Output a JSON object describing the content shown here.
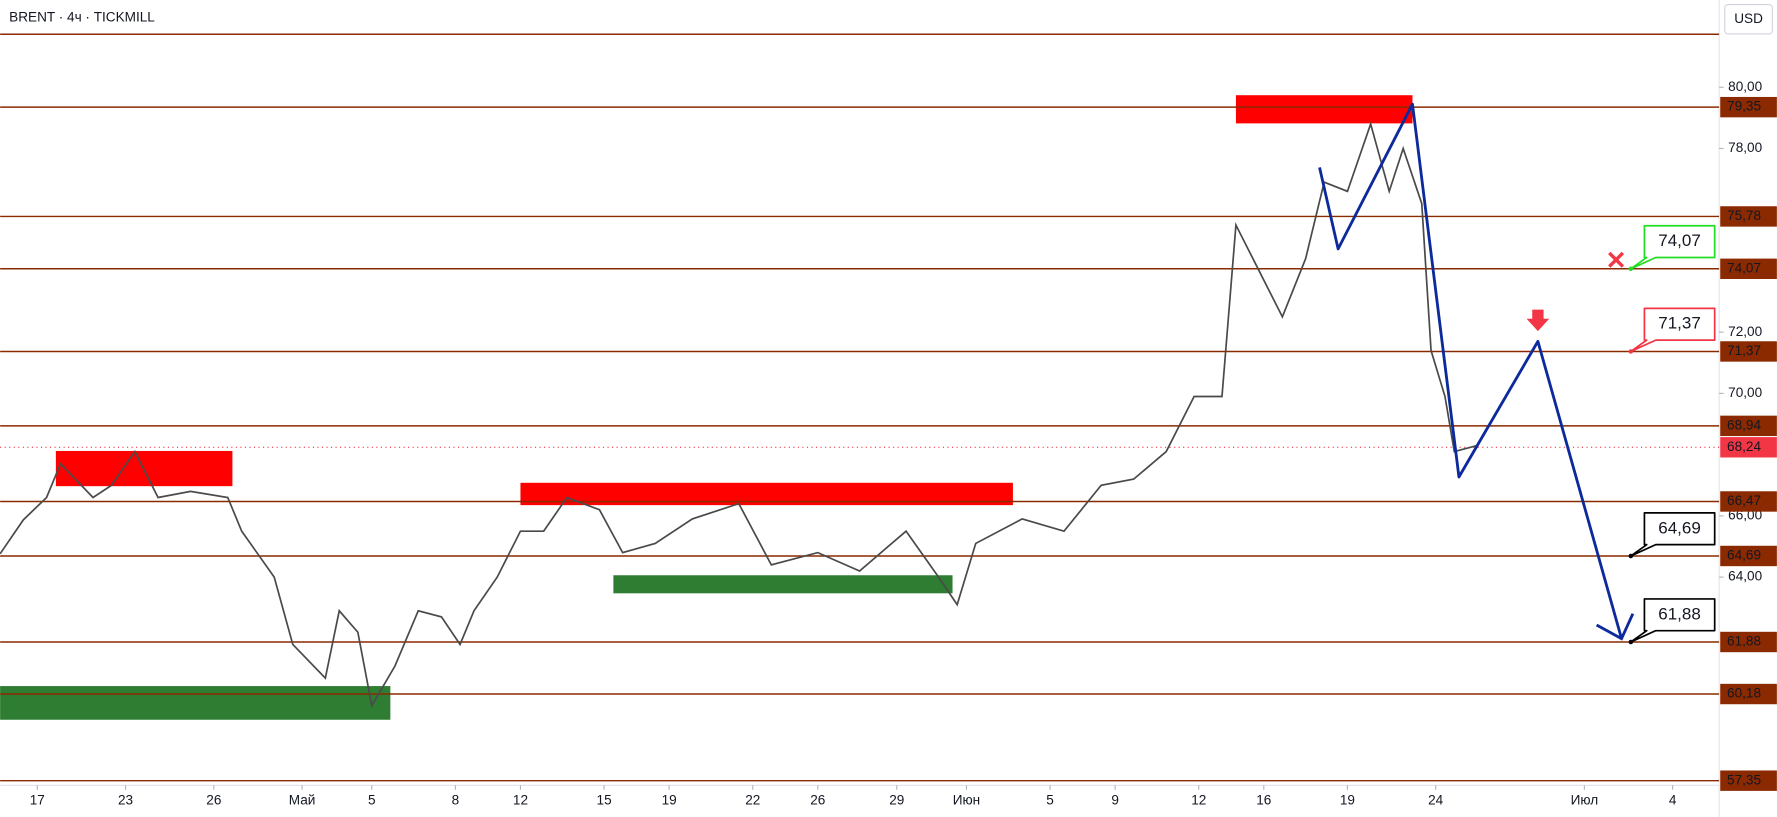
{
  "chart_data": {
    "type": "line",
    "title": "BRENT · 4ч · TICKMILL",
    "currency": "USD",
    "xlim": [
      0,
      370
    ],
    "ylim": [
      57.2,
      82.85
    ],
    "xticks": [
      {
        "value": 8,
        "label": "17"
      },
      {
        "value": 27,
        "label": "23"
      },
      {
        "value": 46,
        "label": "26"
      },
      {
        "value": 65,
        "label": "Май"
      },
      {
        "value": 80,
        "label": "5"
      },
      {
        "value": 98,
        "label": "8"
      },
      {
        "value": 112,
        "label": "12"
      },
      {
        "value": 130,
        "label": "15"
      },
      {
        "value": 144,
        "label": "19"
      },
      {
        "value": 162,
        "label": "22"
      },
      {
        "value": 176,
        "label": "26"
      },
      {
        "value": 193,
        "label": "29"
      },
      {
        "value": 208,
        "label": "Июн"
      },
      {
        "value": 226,
        "label": "5"
      },
      {
        "value": 240,
        "label": "9"
      },
      {
        "value": 258,
        "label": "12"
      },
      {
        "value": 272,
        "label": "16"
      },
      {
        "value": 290,
        "label": "19"
      },
      {
        "value": 309,
        "label": "24"
      },
      {
        "value": 341,
        "label": "Июл"
      },
      {
        "value": 360,
        "label": "4"
      }
    ],
    "yticks": [
      {
        "value": 80,
        "label": "80,00"
      },
      {
        "value": 78,
        "label": "78,00"
      },
      {
        "value": 72,
        "label": "72,00"
      },
      {
        "value": 70,
        "label": "70,00"
      },
      {
        "value": 66,
        "label": "66,00"
      },
      {
        "value": 64,
        "label": "64,00"
      }
    ],
    "series": [
      {
        "name": "BRENT",
        "color": "#4a4a4a",
        "x": [
          0,
          5,
          10,
          13,
          20,
          24,
          29,
          34,
          41,
          49,
          52,
          59,
          63,
          70,
          73,
          77,
          80,
          85,
          90,
          95,
          99,
          102,
          107,
          112,
          117,
          122,
          129,
          134,
          141,
          149,
          159,
          166,
          176,
          185,
          195,
          202,
          206,
          210,
          220,
          229,
          237,
          244,
          251,
          257,
          263,
          266,
          271,
          276,
          281,
          285,
          290,
          295,
          299,
          302,
          306,
          308,
          311,
          313,
          318
        ],
        "values": [
          64.76,
          65.87,
          66.6,
          67.7,
          66.6,
          67.0,
          68.1,
          66.6,
          66.8,
          66.6,
          65.5,
          64.0,
          61.8,
          60.7,
          62.9,
          62.2,
          59.8,
          61.1,
          62.9,
          62.7,
          61.8,
          62.9,
          64.0,
          65.5,
          65.5,
          66.6,
          66.2,
          64.8,
          65.1,
          65.9,
          66.4,
          64.4,
          64.8,
          64.2,
          65.5,
          64.0,
          63.1,
          65.1,
          65.9,
          65.5,
          67.0,
          67.2,
          68.1,
          69.9,
          69.9,
          75.5,
          74.0,
          72.5,
          74.4,
          76.9,
          76.6,
          78.8,
          76.6,
          78.0,
          76.2,
          71.4,
          69.9,
          68.1,
          68.3
        ]
      }
    ],
    "levels": [
      {
        "value": 81.73
      },
      {
        "value": 79.35,
        "label": "79,35"
      },
      {
        "value": 75.78,
        "label": "75,78"
      },
      {
        "value": 74.07,
        "label": "74,07"
      },
      {
        "value": 71.37,
        "label": "71,37"
      },
      {
        "value": 68.94,
        "label": "68,94"
      },
      {
        "value": 66.47,
        "label": "66,47"
      },
      {
        "value": 64.69,
        "label": "64,69"
      },
      {
        "value": 61.88,
        "label": "61,88"
      },
      {
        "value": 60.18,
        "label": "60,18"
      },
      {
        "value": 57.35,
        "label": "57,35"
      }
    ],
    "last_price": {
      "value": 68.24,
      "label": "68,24",
      "color": "#f23645"
    },
    "zones": [
      {
        "x": [
          12,
          50
        ],
        "y": [
          66.97,
          68.12
        ],
        "color": "#ff0000"
      },
      {
        "x": [
          112,
          218
        ],
        "y": [
          66.35,
          67.08
        ],
        "color": "#ff0000"
      },
      {
        "x": [
          132,
          205
        ],
        "y": [
          63.47,
          64.06
        ],
        "color": "#2e7d32"
      },
      {
        "x": [
          0,
          84
        ],
        "y": [
          59.34,
          60.44
        ],
        "color": "#2e7d32"
      },
      {
        "x": [
          266,
          304
        ],
        "y": [
          78.82,
          79.74
        ],
        "color": "#ff0000"
      }
    ],
    "projection": {
      "color": "#0d2a9c",
      "x": [
        284,
        288,
        304,
        314,
        331,
        349
      ],
      "values": [
        77.38,
        74.72,
        79.45,
        67.27,
        71.7,
        61.99
      ]
    },
    "callouts": [
      {
        "x": 351,
        "value": 74.07,
        "label": "74,07",
        "color": "#22dd22"
      },
      {
        "x": 351,
        "value": 71.37,
        "label": "71,37",
        "color": "#f23645"
      },
      {
        "x": 351,
        "value": 64.69,
        "label": "64,69",
        "color": "#000000"
      },
      {
        "x": 351,
        "value": 61.88,
        "label": "61,88",
        "color": "#000000"
      }
    ]
  }
}
